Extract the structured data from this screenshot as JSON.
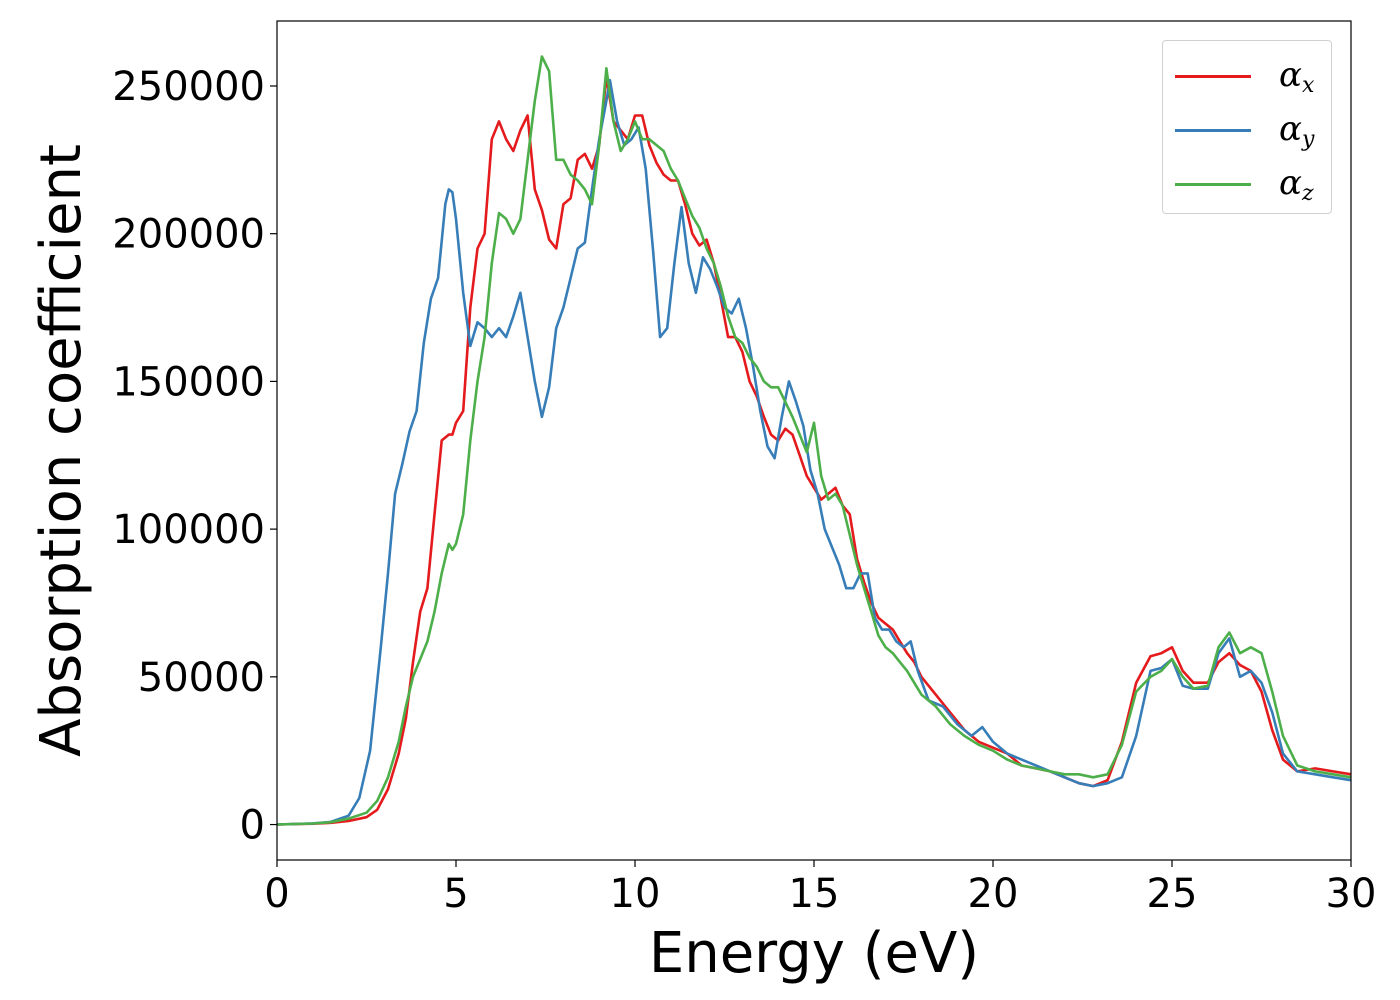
{
  "chart_data": {
    "type": "line",
    "title": "",
    "xlabel": "Energy (eV)",
    "ylabel": "Absorption coefficient",
    "xlim": [
      0,
      30
    ],
    "ylim": [
      -12000,
      272000
    ],
    "xticks": [
      "0",
      "5",
      "10",
      "15",
      "20",
      "25",
      "30"
    ],
    "yticks": [
      "0",
      "50000",
      "100000",
      "150000",
      "200000",
      "250000"
    ],
    "xtick_values": [
      0,
      5,
      10,
      15,
      20,
      25,
      30
    ],
    "ytick_values": [
      0,
      50000,
      100000,
      150000,
      200000,
      250000
    ],
    "grid": false,
    "legend_position": "top-right",
    "series": [
      {
        "name": "α",
        "subscript": "x",
        "color": "#e41a1c",
        "x": [
          0,
          1,
          1.5,
          2,
          2.5,
          2.8,
          3.1,
          3.4,
          3.6,
          3.8,
          4,
          4.2,
          4.4,
          4.6,
          4.8,
          4.9,
          5,
          5.2,
          5.4,
          5.6,
          5.8,
          6,
          6.2,
          6.4,
          6.6,
          6.8,
          7,
          7.2,
          7.4,
          7.6,
          7.8,
          8,
          8.2,
          8.4,
          8.6,
          8.8,
          9,
          9.2,
          9.4,
          9.6,
          9.8,
          10,
          10.2,
          10.4,
          10.6,
          10.8,
          11,
          11.2,
          11.4,
          11.6,
          11.8,
          12,
          12.2,
          12.4,
          12.6,
          12.8,
          13,
          13.2,
          13.4,
          13.6,
          13.8,
          14,
          14.2,
          14.4,
          14.6,
          14.8,
          15,
          15.2,
          15.4,
          15.6,
          15.8,
          16,
          16.2,
          16.4,
          16.6,
          16.8,
          17,
          17.2,
          17.4,
          17.6,
          17.8,
          18,
          18.4,
          18.8,
          19.2,
          19.6,
          20,
          20.4,
          20.8,
          21.2,
          21.6,
          22,
          22.4,
          22.8,
          23.2,
          23.6,
          24,
          24.4,
          24.7,
          25,
          25.3,
          25.6,
          26,
          26.3,
          26.6,
          26.9,
          27.2,
          27.5,
          27.8,
          28.1,
          28.5,
          29,
          29.5,
          30
        ],
        "values": [
          0,
          300,
          600,
          1200,
          2500,
          5000,
          12000,
          24000,
          36000,
          55000,
          72000,
          80000,
          105000,
          130000,
          132000,
          132000,
          136000,
          140000,
          175000,
          195000,
          200000,
          232000,
          238000,
          232000,
          228000,
          235000,
          240000,
          215000,
          208000,
          198000,
          195000,
          210000,
          212000,
          225000,
          227000,
          222000,
          230000,
          253000,
          238000,
          235000,
          232000,
          240000,
          240000,
          230000,
          224000,
          220000,
          218000,
          218000,
          210000,
          200000,
          196000,
          198000,
          190000,
          178000,
          165000,
          165000,
          160000,
          150000,
          145000,
          138000,
          132000,
          130000,
          134000,
          132000,
          125000,
          118000,
          114000,
          110000,
          112000,
          114000,
          108000,
          105000,
          90000,
          82000,
          75000,
          70000,
          68000,
          66000,
          62000,
          58000,
          55000,
          50000,
          44000,
          38000,
          32000,
          28000,
          26000,
          24000,
          20000,
          19000,
          18000,
          16000,
          14000,
          13000,
          15000,
          28000,
          48000,
          57000,
          58000,
          60000,
          52000,
          48000,
          48000,
          55000,
          58000,
          54000,
          52000,
          45000,
          32000,
          22000,
          18000,
          19000,
          18000,
          17000
        ]
      },
      {
        "name": "α",
        "subscript": "y",
        "color": "#377eb8",
        "x": [
          0,
          1,
          1.5,
          2,
          2.3,
          2.6,
          2.9,
          3.1,
          3.3,
          3.5,
          3.7,
          3.9,
          4.1,
          4.3,
          4.5,
          4.7,
          4.8,
          4.9,
          5,
          5.2,
          5.4,
          5.6,
          5.8,
          6,
          6.2,
          6.4,
          6.6,
          6.8,
          7,
          7.2,
          7.4,
          7.6,
          7.8,
          8,
          8.2,
          8.4,
          8.6,
          8.8,
          9,
          9.2,
          9.3,
          9.5,
          9.7,
          9.9,
          10.1,
          10.3,
          10.5,
          10.7,
          10.9,
          11.1,
          11.3,
          11.5,
          11.7,
          11.9,
          12.1,
          12.3,
          12.5,
          12.7,
          12.9,
          13.1,
          13.3,
          13.5,
          13.7,
          13.9,
          14.1,
          14.3,
          14.5,
          14.7,
          14.9,
          15.1,
          15.3,
          15.5,
          15.7,
          15.9,
          16.1,
          16.3,
          16.5,
          16.7,
          16.9,
          17.1,
          17.3,
          17.5,
          17.7,
          17.9,
          18.2,
          18.6,
          19,
          19.4,
          19.7,
          20,
          20.4,
          20.8,
          21.2,
          21.6,
          22,
          22.4,
          22.8,
          23.2,
          23.6,
          24,
          24.4,
          24.7,
          25,
          25.3,
          25.6,
          26,
          26.3,
          26.6,
          26.9,
          27.2,
          27.5,
          27.8,
          28.1,
          28.5,
          29,
          29.5,
          30
        ],
        "values": [
          0,
          400,
          900,
          3000,
          9000,
          25000,
          60000,
          85000,
          112000,
          122000,
          133000,
          140000,
          163000,
          178000,
          185000,
          210000,
          215000,
          214000,
          205000,
          180000,
          162000,
          170000,
          168000,
          165000,
          168000,
          165000,
          172000,
          180000,
          165000,
          150000,
          138000,
          148000,
          168000,
          175000,
          185000,
          195000,
          197000,
          215000,
          232000,
          245000,
          252000,
          238000,
          230000,
          232000,
          236000,
          222000,
          195000,
          165000,
          168000,
          190000,
          209000,
          190000,
          180000,
          192000,
          188000,
          182000,
          175000,
          173000,
          178000,
          168000,
          155000,
          140000,
          128000,
          124000,
          138000,
          150000,
          143000,
          135000,
          120000,
          112000,
          100000,
          94000,
          88000,
          80000,
          80000,
          85000,
          85000,
          70000,
          66000,
          66000,
          62000,
          60000,
          62000,
          52000,
          42000,
          40000,
          34000,
          30000,
          33000,
          28000,
          24000,
          22000,
          20000,
          18000,
          16000,
          14000,
          13000,
          14000,
          16000,
          30000,
          52000,
          53000,
          56000,
          47000,
          46000,
          46000,
          58000,
          63000,
          50000,
          52000,
          48000,
          38000,
          24000,
          18000,
          17000,
          16000,
          15000
        ]
      },
      {
        "name": "α",
        "subscript": "z",
        "color": "#4daf4a",
        "x": [
          0,
          1,
          1.5,
          2,
          2.5,
          2.8,
          3.1,
          3.4,
          3.6,
          3.8,
          4,
          4.2,
          4.4,
          4.6,
          4.8,
          4.9,
          5,
          5.2,
          5.4,
          5.6,
          5.8,
          6,
          6.2,
          6.4,
          6.6,
          6.8,
          7,
          7.2,
          7.4,
          7.6,
          7.8,
          8,
          8.2,
          8.4,
          8.6,
          8.8,
          9,
          9.2,
          9.4,
          9.6,
          9.8,
          10,
          10.2,
          10.4,
          10.6,
          10.8,
          11,
          11.2,
          11.4,
          11.6,
          11.8,
          12,
          12.2,
          12.4,
          12.6,
          12.8,
          13,
          13.2,
          13.4,
          13.6,
          13.8,
          14,
          14.2,
          14.4,
          14.6,
          14.8,
          15,
          15.2,
          15.4,
          15.6,
          15.8,
          16,
          16.2,
          16.4,
          16.6,
          16.8,
          17,
          17.2,
          17.4,
          17.6,
          17.8,
          18,
          18.4,
          18.8,
          19.2,
          19.6,
          20,
          20.4,
          20.8,
          21.2,
          21.6,
          22,
          22.4,
          22.8,
          23.2,
          23.6,
          24,
          24.4,
          24.7,
          25,
          25.3,
          25.6,
          26,
          26.3,
          26.6,
          26.9,
          27.2,
          27.5,
          27.8,
          28.1,
          28.5,
          29,
          29.5,
          30
        ],
        "values": [
          0,
          350,
          800,
          2000,
          4000,
          8000,
          16000,
          28000,
          40000,
          50000,
          56000,
          62000,
          72000,
          85000,
          95000,
          93000,
          95000,
          105000,
          130000,
          150000,
          165000,
          190000,
          207000,
          205000,
          200000,
          205000,
          225000,
          245000,
          260000,
          255000,
          225000,
          225000,
          220000,
          218000,
          215000,
          210000,
          230000,
          256000,
          238000,
          228000,
          232000,
          238000,
          232000,
          232000,
          230000,
          228000,
          222000,
          218000,
          212000,
          206000,
          202000,
          195000,
          190000,
          182000,
          172000,
          165000,
          163000,
          158000,
          155000,
          150000,
          148000,
          148000,
          143000,
          138000,
          132000,
          126000,
          136000,
          118000,
          110000,
          112000,
          108000,
          98000,
          88000,
          80000,
          72000,
          64000,
          60000,
          58000,
          55000,
          52000,
          48000,
          44000,
          40000,
          34000,
          30000,
          27000,
          25000,
          22000,
          20000,
          19000,
          18000,
          17000,
          17000,
          16000,
          17000,
          27000,
          45000,
          50000,
          52000,
          56000,
          50000,
          46000,
          47000,
          60000,
          65000,
          58000,
          60000,
          58000,
          45000,
          30000,
          20000,
          18000,
          17000,
          16000
        ]
      }
    ]
  }
}
